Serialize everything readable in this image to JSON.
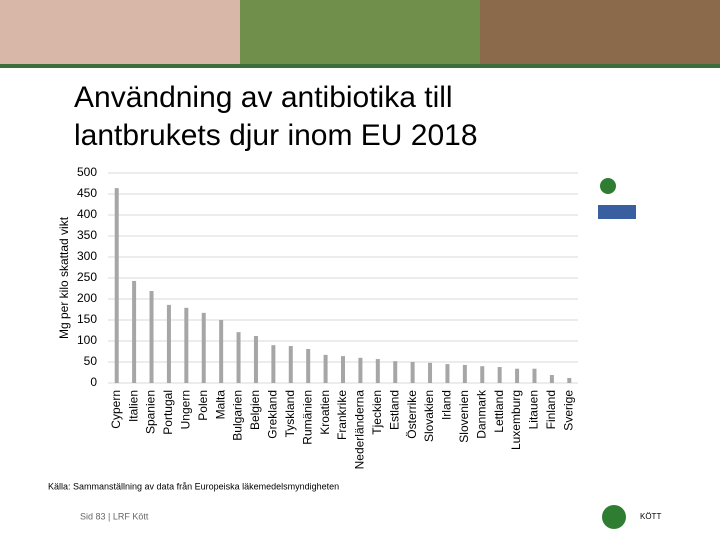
{
  "chart_data": {
    "type": "bar",
    "title": "Användning av antibiotika till lantbrukets djur inom EU 2018",
    "y_label": "Mg per kilo skattad vikt",
    "categories": [
      "Cypern",
      "Italien",
      "Spanien",
      "Portugal",
      "Ungern",
      "Polen",
      "Malta",
      "Bulgarien",
      "Belgien",
      "Grekland",
      "Tyskland",
      "Rumänien",
      "Kroatien",
      "Frankrike",
      "Nederländerna",
      "Tjeckien",
      "Estland",
      "Österrike",
      "Slovakien",
      "Irland",
      "Slovenien",
      "Danmark",
      "Lettland",
      "Luxemburg",
      "Litauen",
      "Finland",
      "Sverige"
    ],
    "values": [
      464,
      243,
      219,
      186,
      179,
      167,
      150,
      121,
      112,
      90,
      88,
      81,
      67,
      64,
      60,
      57,
      52,
      50,
      48,
      45,
      43,
      40,
      38,
      34,
      34,
      19,
      12
    ],
    "color": "#a6a6a6",
    "ylim": [
      0,
      500
    ],
    "yticks": [
      0,
      50,
      100,
      150,
      200,
      250,
      300,
      350,
      400,
      450,
      500
    ],
    "grid": true,
    "source": "Källa: Sammanställning av data från Europeiska läkemedelsmyndigheten"
  },
  "footer": "Sid 83 | LRF Kött",
  "logo_text": "KÖTT"
}
